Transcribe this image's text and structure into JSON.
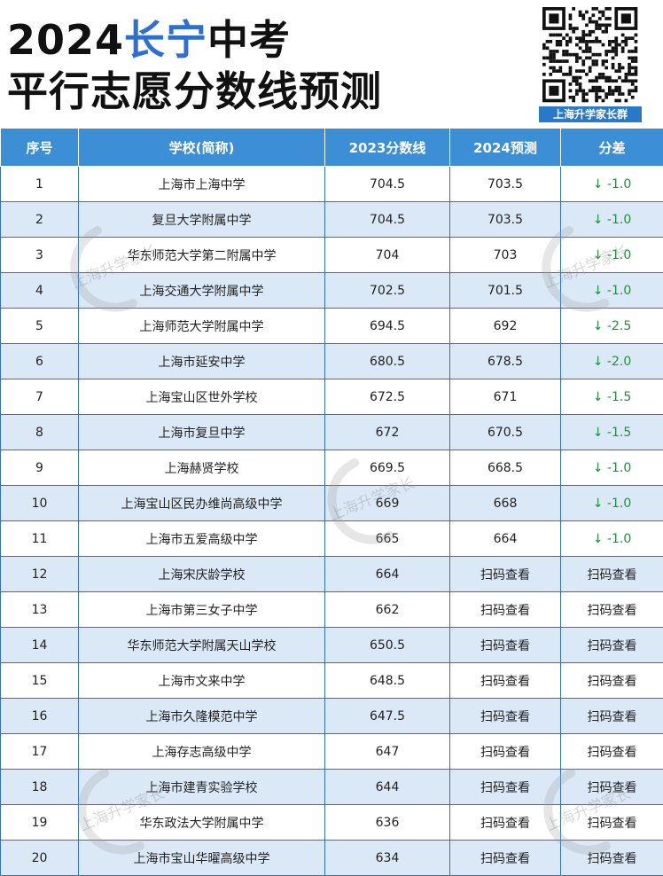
{
  "header": {
    "title_year": "2024",
    "title_district": "长宁",
    "title_suffix": "中考",
    "title_line2": "平行志愿分数线预测",
    "qr_caption": "上海升学家长群"
  },
  "watermark": "上海升学家长",
  "colors": {
    "accent": "#2f6fd0",
    "header_bg": "#3d8fd5",
    "row_alt_bg": "#dbe9f7",
    "down_arrow": "#1e8f3c"
  },
  "table": {
    "columns": [
      "序号",
      "学校(简称)",
      "2023分数线",
      "2024预测",
      "分差"
    ],
    "rows": [
      {
        "no": "1",
        "school": "上海市上海中学",
        "score_2023": "704.5",
        "predict_2024": "703.5",
        "diff": "↓ -1.0"
      },
      {
        "no": "2",
        "school": "复旦大学附属中学",
        "score_2023": "704.5",
        "predict_2024": "703.5",
        "diff": "↓ -1.0"
      },
      {
        "no": "3",
        "school": "华东师范大学第二附属中学",
        "score_2023": "704",
        "predict_2024": "703",
        "diff": "↓ -1.0"
      },
      {
        "no": "4",
        "school": "上海交通大学附属中学",
        "score_2023": "702.5",
        "predict_2024": "701.5",
        "diff": "↓ -1.0"
      },
      {
        "no": "5",
        "school": "上海师范大学附属中学",
        "score_2023": "694.5",
        "predict_2024": "692",
        "diff": "↓ -2.5"
      },
      {
        "no": "6",
        "school": "上海市延安中学",
        "score_2023": "680.5",
        "predict_2024": "678.5",
        "diff": "↓ -2.0"
      },
      {
        "no": "7",
        "school": "上海宝山区世外学校",
        "score_2023": "672.5",
        "predict_2024": "671",
        "diff": "↓ -1.5"
      },
      {
        "no": "8",
        "school": "上海市复旦中学",
        "score_2023": "672",
        "predict_2024": "670.5",
        "diff": "↓ -1.5"
      },
      {
        "no": "9",
        "school": "上海赫贤学校",
        "score_2023": "669.5",
        "predict_2024": "668.5",
        "diff": "↓ -1.0"
      },
      {
        "no": "10",
        "school": "上海宝山区民办维尚高级中学",
        "score_2023": "669",
        "predict_2024": "668",
        "diff": "↓ -1.0"
      },
      {
        "no": "11",
        "school": "上海市五爱高级中学",
        "score_2023": "665",
        "predict_2024": "664",
        "diff": "↓ -1.0"
      },
      {
        "no": "12",
        "school": "上海宋庆龄学校",
        "score_2023": "664",
        "predict_2024": "扫码查看",
        "diff": "扫码查看"
      },
      {
        "no": "13",
        "school": "上海市第三女子中学",
        "score_2023": "662",
        "predict_2024": "扫码查看",
        "diff": "扫码查看"
      },
      {
        "no": "14",
        "school": "华东师范大学附属天山学校",
        "score_2023": "650.5",
        "predict_2024": "扫码查看",
        "diff": "扫码查看"
      },
      {
        "no": "15",
        "school": "上海市文来中学",
        "score_2023": "648.5",
        "predict_2024": "扫码查看",
        "diff": "扫码查看"
      },
      {
        "no": "16",
        "school": "上海市久隆模范中学",
        "score_2023": "647.5",
        "predict_2024": "扫码查看",
        "diff": "扫码查看"
      },
      {
        "no": "17",
        "school": "上海存志高级中学",
        "score_2023": "647",
        "predict_2024": "扫码查看",
        "diff": "扫码查看"
      },
      {
        "no": "18",
        "school": "上海市建青实验学校",
        "score_2023": "644",
        "predict_2024": "扫码查看",
        "diff": "扫码查看"
      },
      {
        "no": "19",
        "school": "华东政法大学附属中学",
        "score_2023": "636",
        "predict_2024": "扫码查看",
        "diff": "扫码查看"
      },
      {
        "no": "20",
        "school": "上海市宝山华曜高级中学",
        "score_2023": "634",
        "predict_2024": "扫码查看",
        "diff": "扫码查看"
      }
    ]
  }
}
